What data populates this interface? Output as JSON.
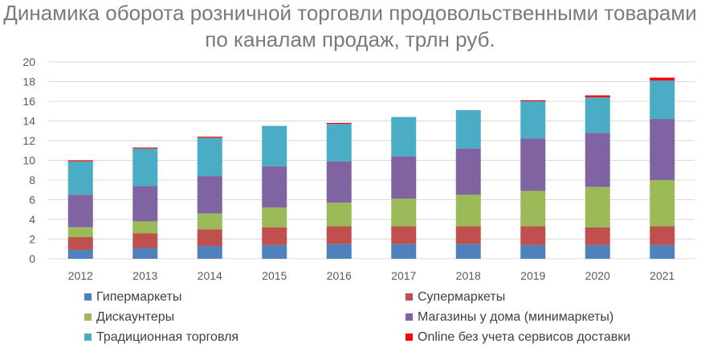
{
  "chart_data": {
    "type": "bar",
    "stacked": true,
    "title_lines": [
      "Динамика оборота розничной торговли продовольственными товарами",
      "по каналам продаж, трлн руб."
    ],
    "categories": [
      "2012",
      "2013",
      "2014",
      "2015",
      "2016",
      "2017",
      "2018",
      "2019",
      "2020",
      "2021"
    ],
    "ylim": [
      0,
      20
    ],
    "yticks": [
      "0",
      "2",
      "4",
      "6",
      "8",
      "10",
      "12",
      "14",
      "16",
      "18",
      "20"
    ],
    "grid": true,
    "legend_position": "bottom",
    "series": [
      {
        "name": "Гипермаркеты",
        "color": "#4f81bd",
        "values": [
          0.9,
          1.1,
          1.3,
          1.4,
          1.5,
          1.5,
          1.5,
          1.4,
          1.4,
          1.4
        ]
      },
      {
        "name": "Супермаркеты",
        "color": "#c0504d",
        "values": [
          1.3,
          1.5,
          1.7,
          1.8,
          1.8,
          1.8,
          1.8,
          1.9,
          1.8,
          1.9
        ]
      },
      {
        "name": "Дискаунтеры",
        "color": "#9bbb59",
        "values": [
          1.0,
          1.2,
          1.6,
          2.0,
          2.4,
          2.8,
          3.2,
          3.6,
          4.1,
          4.7
        ]
      },
      {
        "name": "Магазины у дома (минимаркеты)",
        "color": "#8064a2",
        "values": [
          3.3,
          3.6,
          3.8,
          4.2,
          4.2,
          4.3,
          4.7,
          5.3,
          5.5,
          6.2
        ]
      },
      {
        "name": "Традиционная торговля",
        "color": "#4bacc6",
        "values": [
          3.4,
          3.8,
          3.9,
          4.1,
          3.8,
          4.0,
          3.9,
          3.8,
          3.6,
          3.9
        ]
      },
      {
        "name": "Online без учета сервисов доставки",
        "color": "#ff0000",
        "values": [
          0.1,
          0.1,
          0.1,
          0.0,
          0.1,
          0.0,
          0.0,
          0.1,
          0.2,
          0.3
        ]
      }
    ]
  }
}
